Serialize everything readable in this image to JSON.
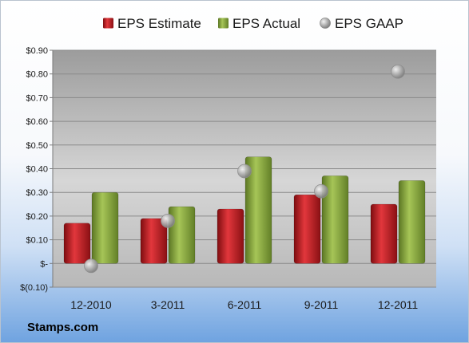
{
  "brand": "Stamps.com",
  "chart_data": {
    "type": "bar",
    "categories": [
      "12-2010",
      "3-2011",
      "6-2011",
      "9-2011",
      "12-2011"
    ],
    "series": [
      {
        "name": "EPS Estimate",
        "kind": "bar",
        "color": "#c0161c",
        "values": [
          0.17,
          0.19,
          0.23,
          0.29,
          0.25
        ]
      },
      {
        "name": "EPS Actual",
        "kind": "bar",
        "color": "#86a83a",
        "values": [
          0.3,
          0.24,
          0.45,
          0.37,
          0.35
        ]
      },
      {
        "name": "EPS GAAP",
        "kind": "scatter",
        "color": "#a9a9a9",
        "values": [
          -0.01,
          0.18,
          0.39,
          0.305,
          0.81
        ]
      }
    ],
    "yticks": [
      {
        "value": 0.9,
        "label": "$0.90"
      },
      {
        "value": 0.8,
        "label": "$0.80"
      },
      {
        "value": 0.7,
        "label": "$0.70"
      },
      {
        "value": 0.6,
        "label": "$0.60"
      },
      {
        "value": 0.5,
        "label": "$0.50"
      },
      {
        "value": 0.4,
        "label": "$0.40"
      },
      {
        "value": 0.3,
        "label": "$0.30"
      },
      {
        "value": 0.2,
        "label": "$0.20"
      },
      {
        "value": 0.1,
        "label": "$0.10"
      },
      {
        "value": 0.0,
        "label": "$-"
      },
      {
        "value": -0.1,
        "label": "$(0.10)"
      }
    ],
    "ylim": [
      -0.1,
      0.9
    ],
    "grid": true,
    "legend_position": "top"
  }
}
